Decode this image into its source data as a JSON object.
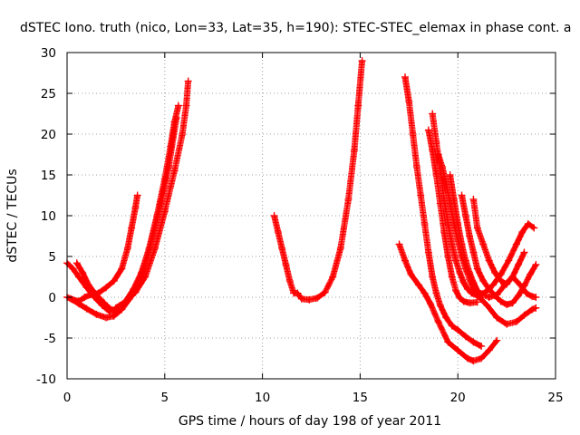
{
  "chart_data": {
    "type": "scatter",
    "title": "dSTEC Iono. truth (nico, Lon=33, Lat=35, h=190): STEC-STEC_elemax in phase cont. a",
    "xlabel": "GPS time / hours of day 198 of year 2011",
    "ylabel": "dSTEC  / TECUs",
    "xlim": [
      0,
      25
    ],
    "ylim": [
      -10,
      30
    ],
    "xticks": [
      0,
      5,
      10,
      15,
      20,
      25
    ],
    "yticks": [
      -10,
      -5,
      0,
      5,
      10,
      15,
      20,
      25,
      30
    ],
    "xtick_labels": [
      "0",
      "5",
      "10",
      "15",
      "20",
      "25"
    ],
    "ytick_labels": [
      "-10",
      "-5",
      "0",
      "5",
      "10",
      "15",
      "20",
      "25",
      "30"
    ],
    "grid": true,
    "marker": "plus",
    "marker_color": "#ff0000",
    "series": [
      {
        "x": [
          0.0,
          0.3,
          0.6,
          0.9,
          1.2,
          1.6,
          2.0,
          2.4,
          2.8,
          3.1,
          3.3,
          3.5,
          3.6
        ],
        "y": [
          0.0,
          -0.3,
          -0.5,
          0.0,
          0.3,
          0.5,
          1.2,
          2.0,
          3.5,
          6.0,
          8.5,
          11.0,
          12.5
        ]
      },
      {
        "x": [
          0.0,
          0.3,
          0.6,
          1.0,
          1.4,
          1.8,
          2.2,
          2.6,
          3.0,
          3.4,
          3.8,
          4.2,
          4.6,
          5.0,
          5.3,
          5.5,
          5.7
        ],
        "y": [
          4.2,
          3.5,
          2.5,
          1.2,
          0.0,
          -1.0,
          -1.8,
          -1.5,
          -0.5,
          1.0,
          3.0,
          6.0,
          10.0,
          14.5,
          18.5,
          21.5,
          23.5
        ]
      },
      {
        "x": [
          0.2,
          0.6,
          1.0,
          1.5,
          2.0,
          2.4,
          2.8,
          3.2,
          3.6,
          4.0,
          4.4,
          4.8,
          5.2,
          5.6
        ],
        "y": [
          -0.2,
          -0.8,
          -1.4,
          -2.1,
          -2.5,
          -2.3,
          -1.5,
          -0.2,
          1.5,
          4.0,
          7.5,
          11.5,
          16.0,
          22.0
        ]
      },
      {
        "x": [
          0.5,
          0.8,
          1.1,
          1.5,
          1.9,
          2.2,
          2.4,
          2.5,
          2.7,
          3.0,
          3.5,
          4.0,
          4.5,
          5.0,
          5.5,
          5.9,
          6.1,
          6.2
        ],
        "y": [
          4.2,
          3.0,
          1.5,
          0.3,
          -0.7,
          -1.4,
          -1.6,
          -1.3,
          -1.0,
          -0.5,
          0.6,
          2.5,
          6.0,
          10.5,
          15.5,
          20.0,
          23.5,
          26.5
        ]
      },
      {
        "x": [
          10.6,
          10.8,
          11.0,
          11.2,
          11.4,
          11.6,
          11.8,
          12.0,
          12.4,
          12.8,
          13.2,
          13.6,
          14.0,
          14.4,
          14.7,
          14.9,
          15.1
        ],
        "y": [
          10.0,
          8.0,
          6.0,
          4.0,
          2.0,
          0.5,
          0.5,
          -0.2,
          -0.3,
          -0.1,
          0.6,
          2.5,
          6.0,
          12.0,
          18.0,
          23.5,
          29.0
        ]
      },
      {
        "x": [
          17.0,
          17.3,
          17.6,
          18.0,
          18.3,
          18.6,
          19.0,
          19.5,
          20.0,
          20.5,
          20.8,
          21.2,
          21.6,
          22.0
        ],
        "y": [
          6.5,
          4.5,
          2.8,
          1.5,
          0.5,
          -0.8,
          -3.0,
          -5.5,
          -6.5,
          -7.5,
          -7.8,
          -7.5,
          -6.5,
          -5.3
        ]
      },
      {
        "x": [
          17.3,
          17.5,
          17.7,
          17.9,
          18.1,
          18.3,
          18.5,
          18.7,
          18.9,
          19.1,
          19.4,
          19.7,
          20.0,
          20.4,
          20.8,
          21.2
        ],
        "y": [
          27.0,
          24.0,
          20.0,
          16.0,
          12.5,
          9.0,
          5.5,
          2.5,
          0.5,
          -1.0,
          -2.5,
          -3.5,
          -4.0,
          -4.8,
          -5.5,
          -6.0
        ]
      },
      {
        "x": [
          18.5,
          18.7,
          18.9,
          19.1,
          19.3,
          19.5,
          19.7,
          19.9,
          20.1,
          20.3,
          20.6,
          21.0
        ],
        "y": [
          20.5,
          18.0,
          15.0,
          11.5,
          8.0,
          5.0,
          2.5,
          0.8,
          -0.1,
          -0.5,
          -0.7,
          -0.6
        ]
      },
      {
        "x": [
          18.7,
          18.9,
          19.1,
          19.3,
          19.5,
          19.7,
          19.9,
          20.1,
          20.3,
          20.5,
          20.7,
          21.0,
          21.4,
          21.8,
          22.2,
          22.6,
          23.0,
          23.3,
          23.6,
          23.9
        ],
        "y": [
          22.5,
          19.0,
          15.5,
          12.0,
          9.0,
          6.5,
          4.5,
          3.0,
          1.8,
          1.0,
          0.5,
          0.2,
          0.6,
          1.5,
          2.8,
          4.5,
          6.5,
          8.0,
          9.0,
          8.5
        ]
      },
      {
        "x": [
          19.0,
          19.2,
          19.4,
          19.6,
          19.8,
          20.0,
          20.2,
          20.4,
          20.6,
          20.8,
          21.1,
          21.5,
          22.0,
          22.5,
          23.0,
          23.4,
          23.8,
          24.0
        ],
        "y": [
          17.5,
          16.0,
          14.0,
          11.5,
          9.0,
          7.0,
          5.0,
          3.5,
          2.2,
          1.0,
          0.0,
          -1.0,
          -2.5,
          -3.3,
          -3.0,
          -2.2,
          -1.5,
          -1.3
        ]
      },
      {
        "x": [
          19.6,
          19.8,
          20.0,
          20.2,
          20.4,
          20.6,
          20.8,
          21.0,
          21.2,
          21.6,
          22.0,
          22.4,
          22.8,
          23.2,
          23.5,
          23.8,
          24.0
        ],
        "y": [
          15.0,
          12.0,
          9.0,
          6.5,
          4.5,
          3.0,
          1.8,
          0.8,
          0.4,
          0.0,
          0.3,
          1.5,
          2.5,
          1.5,
          0.5,
          0.1,
          0.0
        ]
      },
      {
        "x": [
          20.2,
          20.4,
          20.6,
          20.8,
          21.0,
          21.3,
          21.6,
          21.9,
          22.2,
          22.5,
          22.8,
          23.1,
          23.4,
          23.7,
          24.0
        ],
        "y": [
          12.5,
          10.0,
          7.5,
          5.5,
          3.5,
          2.0,
          1.0,
          0.2,
          -0.5,
          -0.9,
          -0.7,
          0.2,
          1.4,
          2.8,
          4.0
        ]
      },
      {
        "x": [
          20.8,
          21.0,
          21.3,
          21.6,
          21.9,
          22.2,
          22.5,
          22.8,
          23.1,
          23.4
        ],
        "y": [
          12.0,
          8.5,
          6.5,
          4.5,
          3.0,
          2.0,
          1.6,
          2.5,
          4.0,
          5.5
        ]
      }
    ]
  }
}
